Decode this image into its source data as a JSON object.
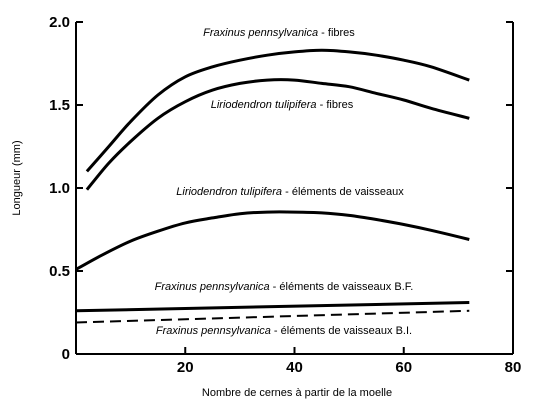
{
  "chart_data": {
    "type": "line",
    "title": "",
    "xlabel": "Nombre de cernes à partir de la moelle",
    "ylabel": "Longueur  (mm)",
    "xlim": [
      0,
      80
    ],
    "ylim": [
      0,
      2.0
    ],
    "x_ticks": [
      "20",
      "40",
      "60",
      "80"
    ],
    "y_ticks": [
      "0",
      "0.5",
      "1.0",
      "1.5",
      "2.0"
    ],
    "origin_tick": "0",
    "grid": false,
    "series": [
      {
        "name": "Fraxinus pennsylvanica - fibres",
        "label_species": "Fraxinus pennsylvanica",
        "label_suffix": " - fibres",
        "style": "solid",
        "x": [
          2,
          6,
          10,
          15,
          20,
          25,
          30,
          35,
          40,
          45,
          50,
          55,
          60,
          65,
          72
        ],
        "y": [
          1.1,
          1.25,
          1.4,
          1.56,
          1.67,
          1.73,
          1.77,
          1.8,
          1.82,
          1.83,
          1.82,
          1.8,
          1.77,
          1.73,
          1.65
        ]
      },
      {
        "name": "Liriodendron tulipifera - fibres",
        "label_species": "Liriodendron tulipifera",
        "label_suffix": " - fibres",
        "style": "solid",
        "x": [
          2,
          6,
          10,
          15,
          20,
          25,
          30,
          35,
          40,
          45,
          50,
          55,
          60,
          65,
          72
        ],
        "y": [
          0.99,
          1.15,
          1.28,
          1.42,
          1.52,
          1.59,
          1.63,
          1.65,
          1.65,
          1.63,
          1.61,
          1.57,
          1.53,
          1.48,
          1.42
        ]
      },
      {
        "name": "Liriodendron tulipifera - éléments de vaisseaux",
        "label_species": "Liriodendron tulipifera",
        "label_suffix": " - éléments de vaisseaux",
        "style": "solid",
        "x": [
          0,
          5,
          10,
          15,
          20,
          25,
          30,
          35,
          40,
          45,
          50,
          55,
          60,
          65,
          72
        ],
        "y": [
          0.51,
          0.6,
          0.68,
          0.74,
          0.79,
          0.82,
          0.845,
          0.855,
          0.855,
          0.85,
          0.835,
          0.81,
          0.78,
          0.745,
          0.69
        ]
      },
      {
        "name": "Fraxinus pennsylvanica - éléments de vaisseaux B.F.",
        "label_species": "Fraxinus pennsylvanica",
        "label_suffix": " - éléments de vaisseaux B.F.",
        "style": "solid",
        "x": [
          0,
          72
        ],
        "y": [
          0.26,
          0.31
        ]
      },
      {
        "name": "Fraxinus pennsylvanica - éléments de vaisseaux B.I.",
        "label_species": "Fraxinus pennsylvanica",
        "label_suffix": " - éléments de vaisseaux B.I.",
        "style": "dashed",
        "x": [
          0,
          72
        ],
        "y": [
          0.19,
          0.26
        ]
      }
    ]
  }
}
